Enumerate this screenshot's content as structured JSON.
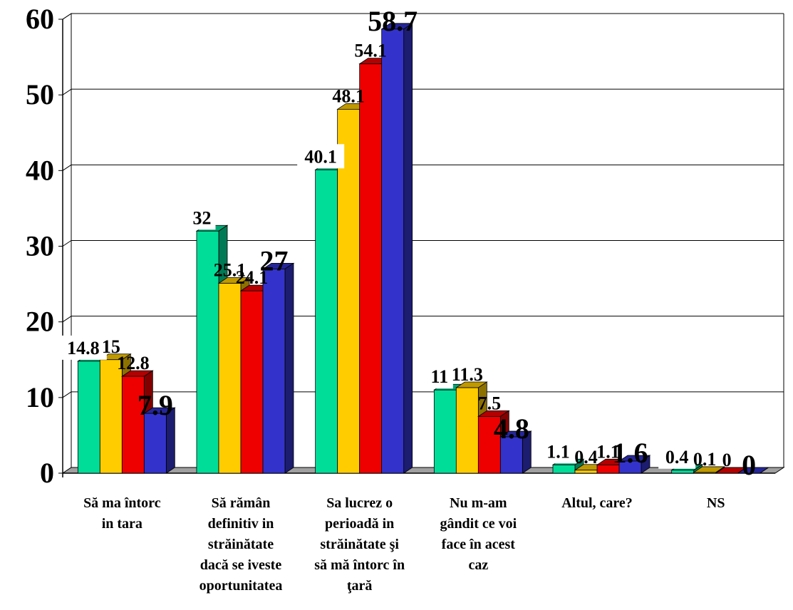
{
  "chart_data": {
    "type": "bar",
    "variant": "3d-clustered",
    "ylim": [
      0,
      60
    ],
    "yticks": [
      "0",
      "10",
      "20",
      "30",
      "40",
      "50",
      "60"
    ],
    "grid": true,
    "categories": [
      [
        "Să ma întorc",
        "in tara"
      ],
      [
        "Să rămân",
        "definitiv in",
        "străinătate",
        "dacă se iveste",
        "oportunitatea"
      ],
      [
        "Sa lucrez o",
        "perioadă in",
        "străinătate şi",
        "să mă întorc în",
        "ţară"
      ],
      [
        "Nu m-am",
        "gândit ce voi",
        "face în acest",
        "caz"
      ],
      [
        "Altul, care?"
      ],
      [
        "NS"
      ]
    ],
    "series": [
      {
        "color": "#00dd99",
        "values": [
          14.8,
          32,
          40.1,
          11,
          1.1,
          0.4
        ],
        "labels": [
          "14.8",
          "32",
          "40.1",
          "11",
          "1.1",
          "0.4"
        ]
      },
      {
        "color": "#ffcc00",
        "values": [
          15,
          25.1,
          48.1,
          11.3,
          0.4,
          0.1
        ],
        "labels": [
          "15",
          "25.1",
          "48.1",
          "11.3",
          "0.4",
          "0.1"
        ]
      },
      {
        "color": "#ee0000",
        "values": [
          12.8,
          24.1,
          54.1,
          7.5,
          1.1,
          0
        ],
        "labels": [
          "12.8",
          "24.1",
          "54.1",
          "7.5",
          "1.1",
          "0"
        ]
      },
      {
        "color": "#3333cc",
        "values": [
          7.9,
          27,
          58.7,
          4.8,
          1.6,
          0
        ],
        "labels": [
          "7.9",
          "27",
          "58.7",
          "4.8",
          "1.6",
          "0"
        ]
      }
    ]
  }
}
